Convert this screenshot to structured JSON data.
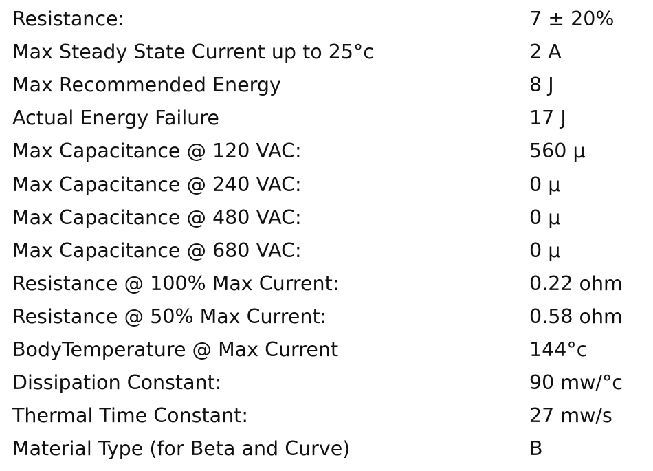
{
  "table": {
    "rows": [
      [
        "Resistance:",
        "7 ± 20%"
      ],
      [
        "Max Steady State Current up to 25°c",
        "2 A"
      ],
      [
        "Max Recommended Energy",
        "8 J"
      ],
      [
        "Actual Energy Failure",
        "17 J"
      ],
      [
        "Max Capacitance @ 120 VAC:",
        "560 μ"
      ],
      [
        "Max Capacitance @ 240 VAC:",
        "0 μ"
      ],
      [
        "Max Capacitance @ 480 VAC:",
        "0 μ"
      ],
      [
        "Max Capacitance @ 680 VAC:",
        "0 μ"
      ],
      [
        "Resistance @ 100% Max Current:",
        "0.22 ohm"
      ],
      [
        "Resistance @ 50% Max Current:",
        "0.58 ohm"
      ],
      [
        "BodyTemperature @ Max Current",
        "144°c"
      ],
      [
        "Dissipation Constant:",
        "90 mw/°c"
      ],
      [
        "Thermal Time Constant:",
        "27 mw/s"
      ],
      [
        "Material Type (for Beta and Curve)",
        "B"
      ]
    ]
  }
}
